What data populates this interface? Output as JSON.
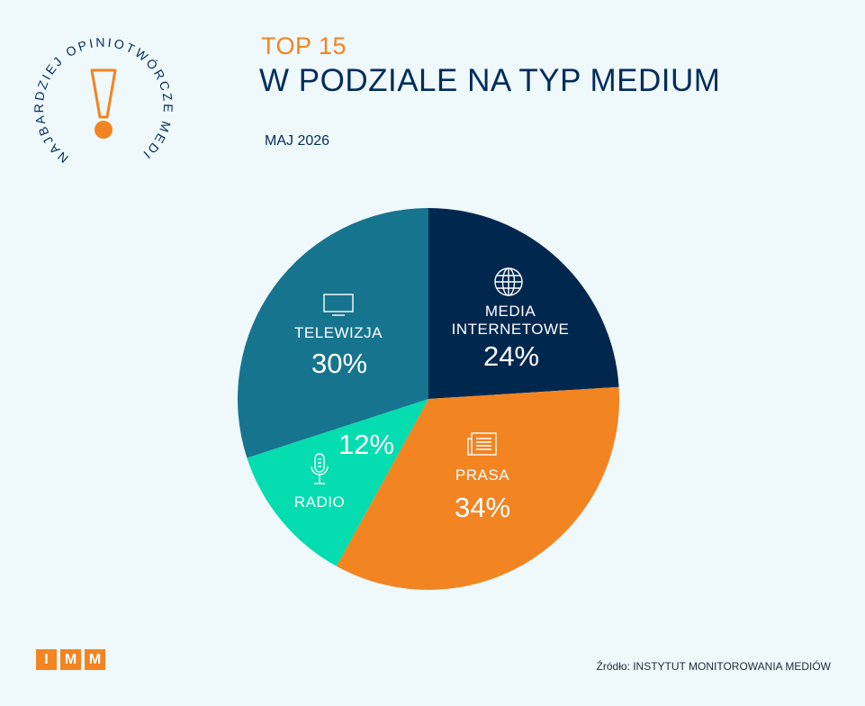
{
  "badge": {
    "ring_text": "NAJBARDZIEJ OPINIOTWÓRCZE MEDIA",
    "accent_color": "#f28422",
    "text_color": "#002d5b"
  },
  "header": {
    "subtitle": "TOP 15",
    "title": "W PODZIALE NA TYP MEDIUM",
    "date": "MAJ 2026"
  },
  "chart_data": {
    "type": "pie",
    "title": "W PODZIALE NA TYP MEDIUM",
    "slices": [
      {
        "label": "MEDIA INTERNETOWE",
        "display": "24%",
        "value": 24,
        "color": "#00284f",
        "icon": "globe-icon"
      },
      {
        "label": "PRASA",
        "display": "34%",
        "value": 34,
        "color": "#f28422",
        "icon": "newspaper-icon"
      },
      {
        "label": "RADIO",
        "display": "12%",
        "value": 12,
        "color": "#05dcb0",
        "icon": "microphone-icon"
      },
      {
        "label": "TELEWIZJA",
        "display": "30%",
        "value": 30,
        "color": "#16748e",
        "icon": "tv-icon"
      }
    ]
  },
  "footer": {
    "logo_letters": [
      "I",
      "M",
      "M"
    ],
    "source": "Źródło: INSTYTUT MONITOROWANIA MEDIÓW"
  }
}
